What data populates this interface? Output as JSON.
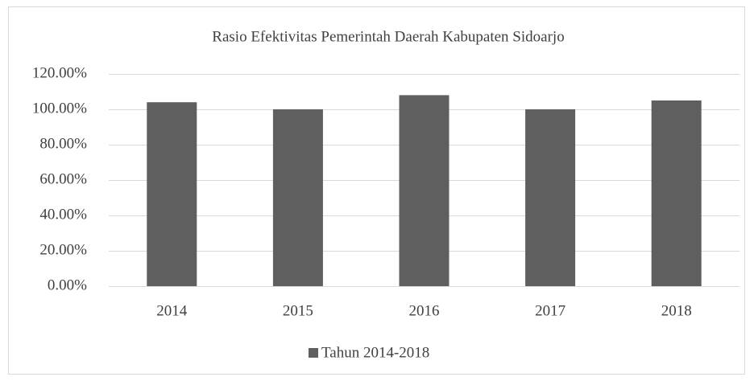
{
  "chart_data": {
    "type": "bar",
    "title": "Rasio Efektivitas Pemerintah Daerah Kabupaten Sidoarjo",
    "categories": [
      "2014",
      "2015",
      "2016",
      "2017",
      "2018"
    ],
    "series": [
      {
        "name": "Tahun 2014-2018",
        "color": "#5f5f5f",
        "values": [
          104,
          100,
          108,
          100,
          105
        ]
      }
    ],
    "ylim": [
      0,
      120
    ],
    "yticks": [
      {
        "value": 0,
        "label": "0.00%"
      },
      {
        "value": 20,
        "label": "20.00%"
      },
      {
        "value": 40,
        "label": "40.00%"
      },
      {
        "value": 60,
        "label": "60.00%"
      },
      {
        "value": 80,
        "label": "80.00%"
      },
      {
        "value": 100,
        "label": "100.00%"
      },
      {
        "value": 120,
        "label": "120.00%"
      }
    ],
    "grid": true,
    "legend": "bottom"
  }
}
